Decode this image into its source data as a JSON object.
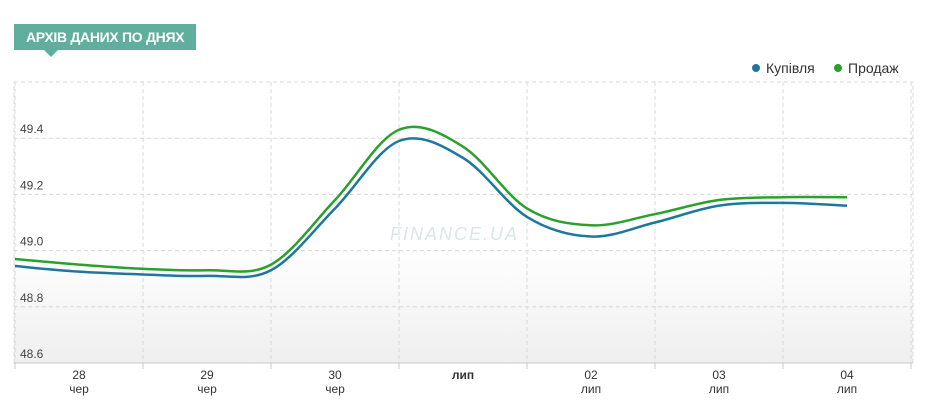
{
  "header": {
    "title": "АРХІВ ДАНИХ ПО ДНЯХ"
  },
  "watermark": "FINANCE.UA",
  "chart_data": {
    "type": "line",
    "xlabel": "",
    "ylabel": "",
    "ylim": [
      48.6,
      49.6
    ],
    "yticks": [
      "49.4",
      "49.2",
      "49.0",
      "48.8",
      "48.6"
    ],
    "ytick_values": [
      49.4,
      49.2,
      49.0,
      48.8,
      48.6
    ],
    "categories": [
      {
        "day": "28",
        "month": "чер"
      },
      {
        "day": "29",
        "month": "чер"
      },
      {
        "day": "30",
        "month": "чер"
      },
      {
        "day": "",
        "month": "лип"
      },
      {
        "day": "02",
        "month": "лип"
      },
      {
        "day": "03",
        "month": "лип"
      },
      {
        "day": "04",
        "month": "лип"
      }
    ],
    "x": [
      -0.5,
      0,
      0.5,
      1,
      1.5,
      2,
      2.5,
      3,
      3.5,
      4,
      4.5,
      5,
      5.5,
      6
    ],
    "series": [
      {
        "name": "Купівля",
        "color": "#1f77a0",
        "values": [
          48.945,
          48.925,
          48.915,
          48.91,
          48.93,
          49.15,
          49.39,
          49.33,
          49.12,
          49.05,
          49.1,
          49.16,
          49.17,
          49.16
        ]
      },
      {
        "name": "Продаж",
        "color": "#2ca02c",
        "values": [
          48.97,
          48.95,
          48.935,
          48.93,
          48.95,
          49.18,
          49.43,
          49.37,
          49.15,
          49.09,
          49.13,
          49.18,
          49.19,
          49.19
        ]
      }
    ],
    "legend": "top-right",
    "grid": true
  }
}
